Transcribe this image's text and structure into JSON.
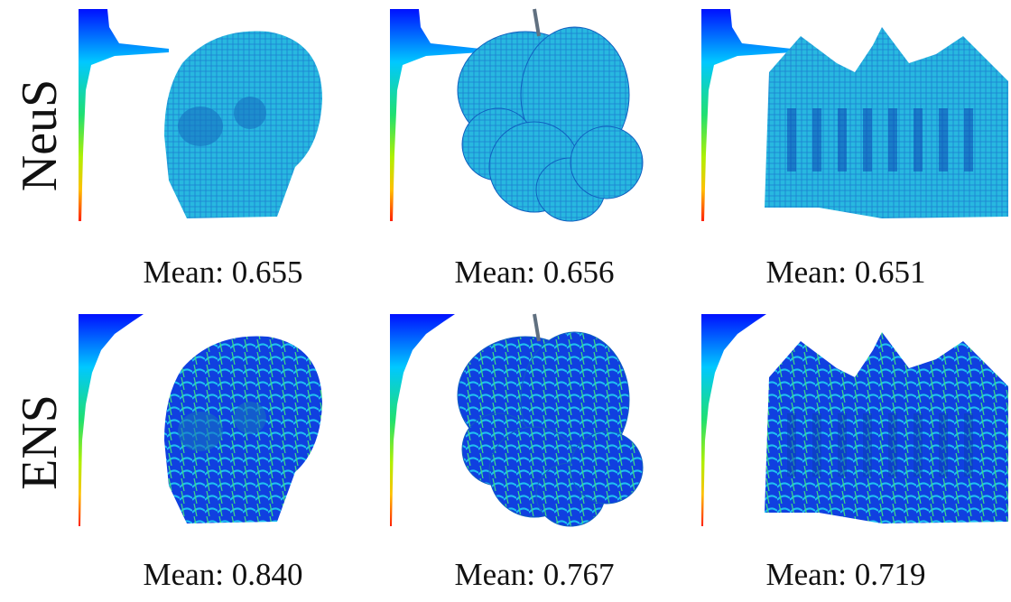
{
  "rows": [
    {
      "label": "NeuS",
      "cells": [
        {
          "caption": "Mean: 0.655"
        },
        {
          "caption": "Mean: 0.656"
        },
        {
          "caption": "Mean: 0.651"
        }
      ]
    },
    {
      "label": "ENS",
      "cells": [
        {
          "caption": "Mean: 0.840"
        },
        {
          "caption": "Mean: 0.767"
        },
        {
          "caption": "Mean: 0.719"
        }
      ]
    }
  ]
}
